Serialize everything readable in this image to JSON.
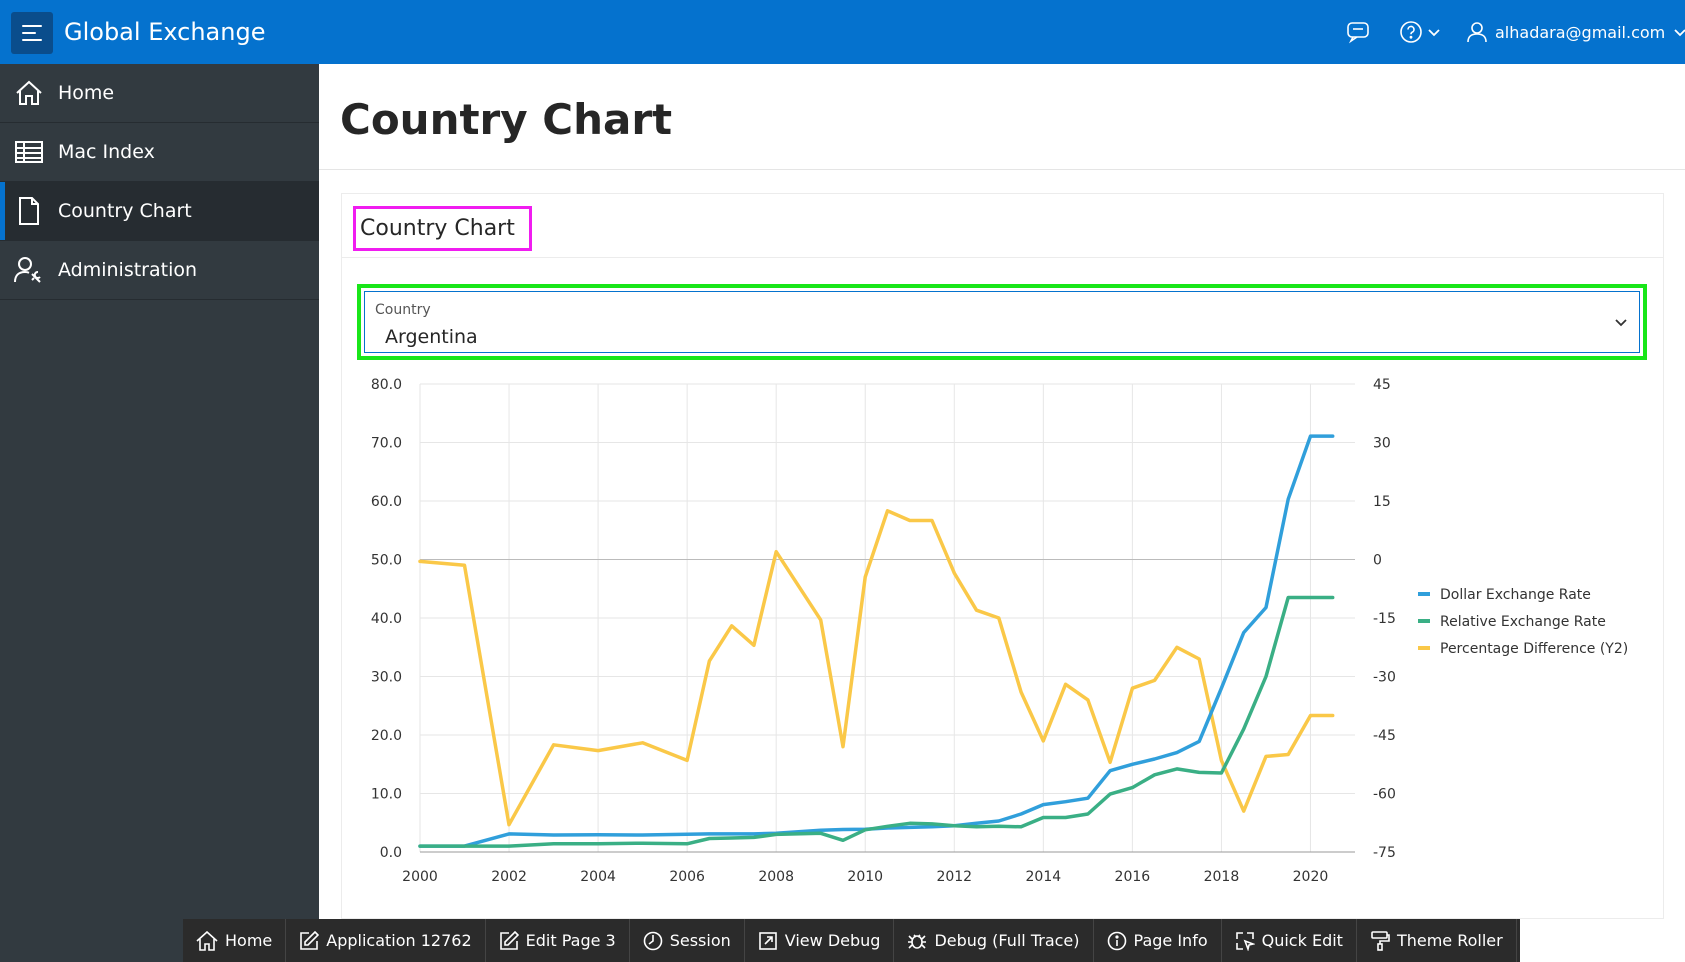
{
  "app": {
    "title": "Global Exchange"
  },
  "header": {
    "user": "alhadara@gmail.com"
  },
  "sidebar": {
    "items": [
      {
        "label": "Home",
        "icon": "home-icon"
      },
      {
        "label": "Mac Index",
        "icon": "table-icon"
      },
      {
        "label": "Country Chart",
        "icon": "document-icon",
        "active": true
      },
      {
        "label": "Administration",
        "icon": "user-wrench-icon"
      }
    ]
  },
  "page": {
    "title": "Country Chart"
  },
  "region": {
    "title": "Country Chart"
  },
  "country_select": {
    "label": "Country",
    "value": "Argentina"
  },
  "chart_data": {
    "type": "line",
    "x": [
      2000,
      2001,
      2002,
      2003,
      2004,
      2005,
      2006,
      2006.5,
      2007,
      2007.5,
      2008,
      2009,
      2009.5,
      2010,
      2010.5,
      2011,
      2011.5,
      2012,
      2012.5,
      2013,
      2013.5,
      2014,
      2014.5,
      2015,
      2015.5,
      2016,
      2016.5,
      2017,
      2017.5,
      2018,
      2018.5,
      2019,
      2019.5,
      2020,
      2020.5
    ],
    "x_ticks": [
      "2000",
      "2002",
      "2004",
      "2006",
      "2008",
      "2010",
      "2012",
      "2014",
      "2016",
      "2018",
      "2020"
    ],
    "y_ticks": [
      "80.0",
      "70.0",
      "60.0",
      "50.0",
      "40.0",
      "30.0",
      "20.0",
      "10.0",
      "0.0"
    ],
    "y2_ticks": [
      "45",
      "30",
      "15",
      "0",
      "-15",
      "-30",
      "-45",
      "-60",
      "-75"
    ],
    "ylim": [
      0,
      80
    ],
    "y2lim": [
      -75,
      45
    ],
    "grid": true,
    "legend_position": "right",
    "series": [
      {
        "name": "Dollar Exchange Rate",
        "color": "#309fdb",
        "axis": "y",
        "values": [
          1.0,
          1.0,
          3.1,
          2.9,
          2.95,
          2.9,
          3.05,
          3.1,
          3.1,
          3.1,
          3.2,
          3.73,
          3.85,
          3.9,
          4.1,
          4.2,
          4.3,
          4.5,
          4.9,
          5.3,
          6.5,
          8.1,
          8.6,
          9.2,
          13.9,
          15.0,
          15.9,
          17.0,
          18.9,
          28.0,
          37.5,
          41.8,
          60.3,
          71.1,
          71.1
        ]
      },
      {
        "name": "Relative Exchange Rate",
        "color": "#3aaf85",
        "axis": "y",
        "values": [
          1.0,
          1.0,
          1.0,
          1.4,
          1.4,
          1.5,
          1.4,
          2.3,
          2.4,
          2.5,
          3.0,
          3.2,
          2.0,
          3.8,
          4.4,
          4.9,
          4.8,
          4.5,
          4.3,
          4.4,
          4.3,
          5.9,
          5.9,
          6.5,
          9.9,
          11.0,
          13.2,
          14.2,
          13.6,
          13.5,
          21.0,
          30.0,
          43.5,
          43.5,
          43.5
        ]
      },
      {
        "name": "Percentage Difference (Y2)",
        "color": "#fac848",
        "axis": "y2",
        "values": [
          -0.5,
          -1.5,
          -68,
          -47.5,
          -49,
          -47,
          -51.5,
          -26,
          -17,
          -22,
          2,
          -15.5,
          -48,
          -4.5,
          12.5,
          10,
          10,
          -3.5,
          -13,
          -15,
          -34,
          -46.5,
          -32,
          -36,
          -52,
          -33,
          -31,
          -22.5,
          -25.5,
          -51.5,
          -64.5,
          -50.5,
          -50,
          -40,
          -40
        ]
      }
    ]
  },
  "devbar": {
    "items": [
      {
        "label": "Home",
        "icon": "home-icon"
      },
      {
        "label": "Application 12762",
        "icon": "edit-icon"
      },
      {
        "label": "Edit Page 3",
        "icon": "edit-icon"
      },
      {
        "label": "Session",
        "icon": "clock-icon"
      },
      {
        "label": "View Debug",
        "icon": "external-link-icon"
      },
      {
        "label": "Debug (Full Trace)",
        "icon": "bug-icon"
      },
      {
        "label": "Page Info",
        "icon": "info-icon"
      },
      {
        "label": "Quick Edit",
        "icon": "cursor-select-icon"
      },
      {
        "label": "Theme Roller",
        "icon": "paint-roller-icon"
      }
    ]
  }
}
